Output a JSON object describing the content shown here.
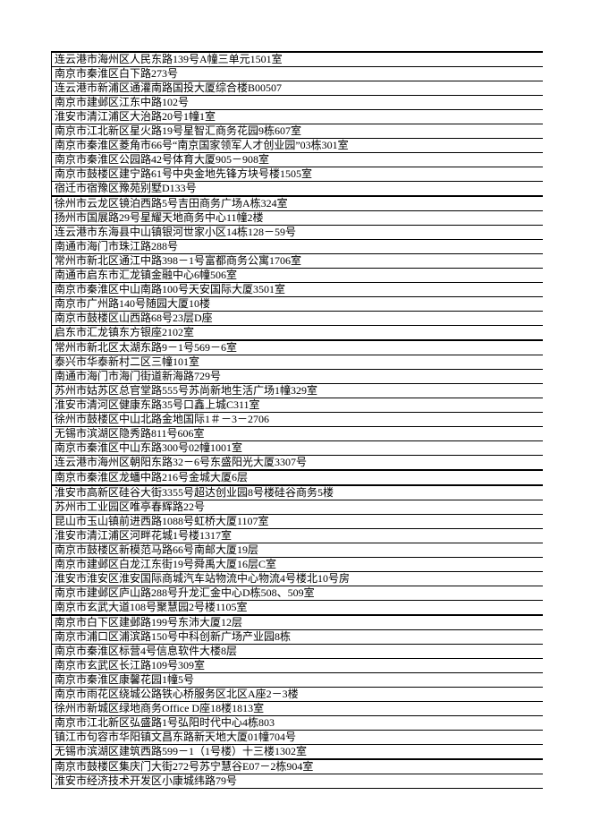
{
  "colors": {
    "page_background": "#ffffff",
    "grid_border": "#000000",
    "text": "#000000"
  },
  "table": {
    "row_count": 51,
    "thick_border_after_rows": [
      10,
      20,
      29,
      30,
      39,
      49
    ],
    "addresses": [
      "连云港市海州区人民东路139号A幢三单元1501室",
      "南京市秦淮区白下路273号",
      "连云港市新浦区通灌南路国投大厦综合楼B00507",
      "南京市建邺区江东中路102号",
      "淮安市清江浦区大治路20号1幢1室",
      "南京市江北新区星火路19号星智汇商务花园9栋607室",
      "南京市秦淮区菱角市66号“南京国家领军人才创业园”03栋301室",
      "南京市秦淮区公园路42号体育大厦905－908室",
      "南京市鼓楼区建宁路61号中央金地先锋方块号楼1505室",
      "宿迁市宿豫区豫苑别墅D133号",
      "徐州市云龙区镜泊西路5号吉田商务广场A栋324室",
      "扬州市国展路29号星耀天地商务中心11幢2楼",
      "连云港市东海县中山镇银河世家小区14栋128－59号",
      "南通市海门市珠江路288号",
      "常州市新北区通江中路398－1号富都商务公寓1706室",
      "南通市启东市汇龙镇金融中心6幢506室",
      "南京市秦淮区中山南路100号天安国际大厦3501室",
      "南京市广州路140号随园大厦10楼",
      "南京市鼓楼区山西路68号23层D座",
      "启东市汇龙镇东方银座2102室",
      "常州市新北区太湖东路9－1号569－6室",
      "泰兴市华泰新村二区三幢101室",
      "南通市海门市海门街道新海路729号",
      "苏州市姑苏区总官堂路555号苏尚新地生活广场1幢329室",
      "淮安市清河区健康东路35号口鑫上城C311室",
      "徐州市鼓楼区中山北路金地国际1＃－3－2706",
      "无锡市滨湖区隐秀路811号606室",
      "南京市秦淮区中山东路300号02幢1001室",
      "连云港市海州区朝阳东路32－6号东盛阳光大厦3307号",
      "南京市秦淮区龙蟠中路216号金城大厦6层",
      "淮安市高新区硅谷大街3355号超达创业园8号楼硅谷商务5楼",
      "苏州市工业园区唯亭春辉路22号",
      "昆山市玉山镇前进西路1088号虹桥大厦1107室",
      "淮安市清江浦区河畔花城1号楼1317室",
      "南京市鼓楼区新模范马路66号南邮大厦19层",
      "南京市建邺区白龙江东街19号舜禹大厦16层C室",
      "淮安市淮安区淮安国际商城汽车站物流中心物流4号楼北10号房",
      "南京市建邺区庐山路288号升龙汇金中心D栋508、509室",
      "南京市玄武大道108号聚慧园2号楼1105室",
      "南京市白下区建邺路199号东沛大厦12层",
      "南京市浦口区浦滨路150号中科创新广场产业园8栋",
      "南京市秦淮区标营4号信息软件大楼8层",
      "南京市玄武区长江路109号309室",
      "南京市秦淮区康馨花园1幢5号",
      "南京市雨花区绕城公路铁心桥服务区北区A座2－3楼",
      "徐州市新城区绿地商务Office D座18楼1813室",
      "南京市江北新区弘盛路1号弘阳时代中心4栋803",
      "镇江市句容市华阳镇文昌东路新天地大厦01幢704号",
      "无锡市滨湖区建筑西路599－1（1号楼）十三楼1302室",
      "南京市鼓楼区集庆门大街272号苏宁慧谷E07－2栋904室",
      "淮安市经济技术开发区小康城纬路79号"
    ]
  }
}
